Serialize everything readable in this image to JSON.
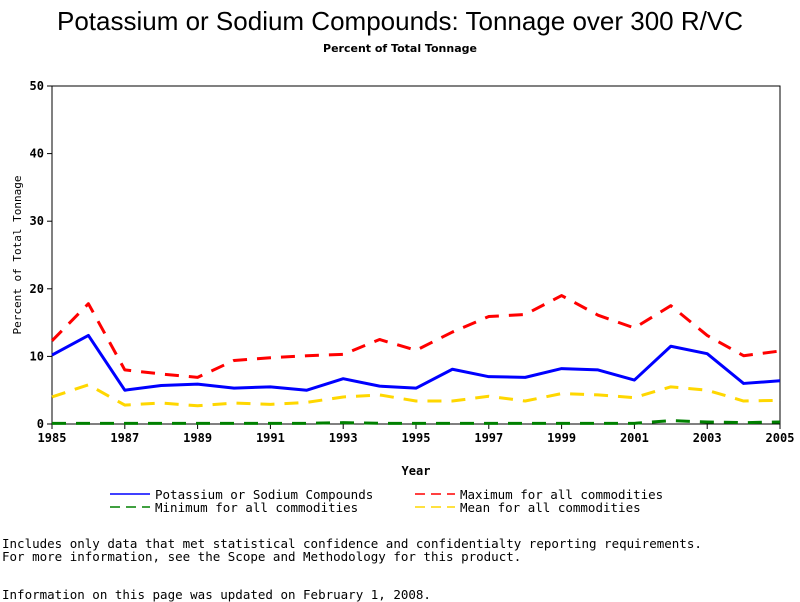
{
  "chart_data": {
    "type": "line",
    "title": "Potassium or Sodium Compounds: Tonnage over 300 R/VC",
    "subtitle": "Percent of Total Tonnage",
    "xlabel": "Year",
    "ylabel": "Percent of Total Tonnage",
    "xlim": [
      1985,
      2005
    ],
    "ylim": [
      0,
      50
    ],
    "x_ticks": [
      "1985",
      "1987",
      "1989",
      "1991",
      "1993",
      "1995",
      "1997",
      "1999",
      "2001",
      "2003",
      "2005"
    ],
    "y_ticks": [
      "0",
      "10",
      "20",
      "30",
      "40",
      "50"
    ],
    "grid": false,
    "legend": "bottom",
    "x": [
      1985,
      1986,
      1987,
      1988,
      1989,
      1990,
      1991,
      1992,
      1993,
      1994,
      1995,
      1996,
      1997,
      1998,
      1999,
      2000,
      2001,
      2002,
      2003,
      2004,
      2005
    ],
    "series": [
      {
        "name": "Potassium or Sodium Compounds",
        "color": "#0000ff",
        "style": "solid",
        "values": [
          10.2,
          13.1,
          5.0,
          5.7,
          5.9,
          5.3,
          5.5,
          5.0,
          6.7,
          5.6,
          5.3,
          8.1,
          7.0,
          6.9,
          8.2,
          8.0,
          6.5,
          11.5,
          10.4,
          6.0,
          6.4
        ]
      },
      {
        "name": "Maximum for all commodities",
        "color": "#ff0000",
        "style": "dashed",
        "values": [
          12.3,
          17.8,
          8.0,
          7.4,
          6.9,
          9.4,
          9.8,
          10.1,
          10.3,
          12.5,
          10.9,
          13.6,
          15.9,
          16.2,
          19.0,
          16.1,
          14.2,
          17.5,
          13.1,
          10.1,
          10.8
        ]
      },
      {
        "name": "Minimum for all commodities",
        "color": "#008000",
        "style": "dashed",
        "values": [
          0.1,
          0.1,
          0.1,
          0.1,
          0.1,
          0.1,
          0.1,
          0.1,
          0.2,
          0.1,
          0.1,
          0.1,
          0.1,
          0.1,
          0.1,
          0.1,
          0.1,
          0.5,
          0.3,
          0.2,
          0.3
        ]
      },
      {
        "name": "Mean for all commodities",
        "color": "#ffd700",
        "style": "dashed",
        "values": [
          4.0,
          5.8,
          2.8,
          3.1,
          2.7,
          3.1,
          2.9,
          3.2,
          4.0,
          4.3,
          3.4,
          3.4,
          4.1,
          3.4,
          4.5,
          4.3,
          3.9,
          5.5,
          5.0,
          3.4,
          3.5
        ]
      }
    ]
  },
  "notes": {
    "line1": "Includes only data that met statistical confidence and confidentialty reporting requirements.",
    "line2": "For more information, see the Scope and Methodology for this product.",
    "updated": "Information on this page was updated on February 1, 2008."
  }
}
